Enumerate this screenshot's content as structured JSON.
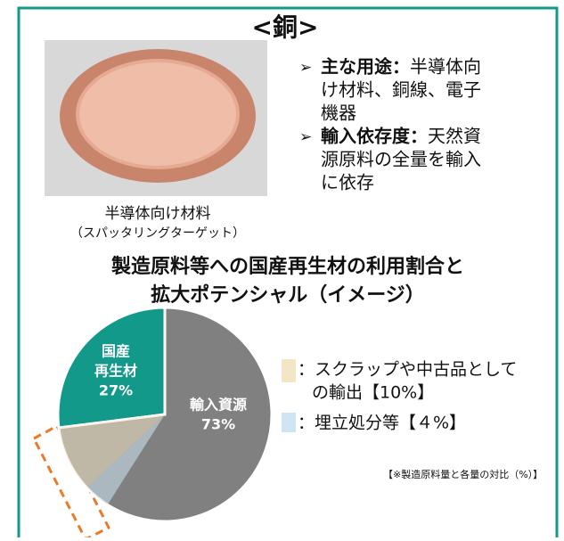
{
  "header": {
    "title": "<銅>"
  },
  "photo": {
    "caption": [
      "半導体向け材料",
      "（スパッタリングターゲット）"
    ]
  },
  "bullets": [
    {
      "label": "主な用途：",
      "lines": [
        "半導体向",
        "け材料、銅線、電子",
        "機器"
      ]
    },
    {
      "label": "輸入依存度：",
      "lines": [
        "天然資",
        "源原料の全量を輸入",
        "に依存"
      ]
    }
  ],
  "chart_data": {
    "type": "pie",
    "title": [
      "製造原料等への国産再生材の利用割合と",
      "拡大ポテンシャル（イメージ）"
    ],
    "labels": [
      [
        "国産",
        "再生材"
      ],
      [
        "輸入資源"
      ]
    ],
    "values": [
      27,
      73
    ],
    "value_labels": [
      "27%",
      "73%"
    ],
    "colors": [
      "#12998a",
      "#808080"
    ],
    "overlay": {
      "values": [
        10,
        4
      ],
      "colors": [
        "#f3e6c4",
        "#cfe6f2"
      ],
      "legend": [
        [
          "：スクラップや中古品として",
          "の輸出【10%】"
        ],
        [
          "：埋立処分等【４%】"
        ]
      ]
    },
    "note": "【※製造原料量と各量の対比（%）】"
  }
}
